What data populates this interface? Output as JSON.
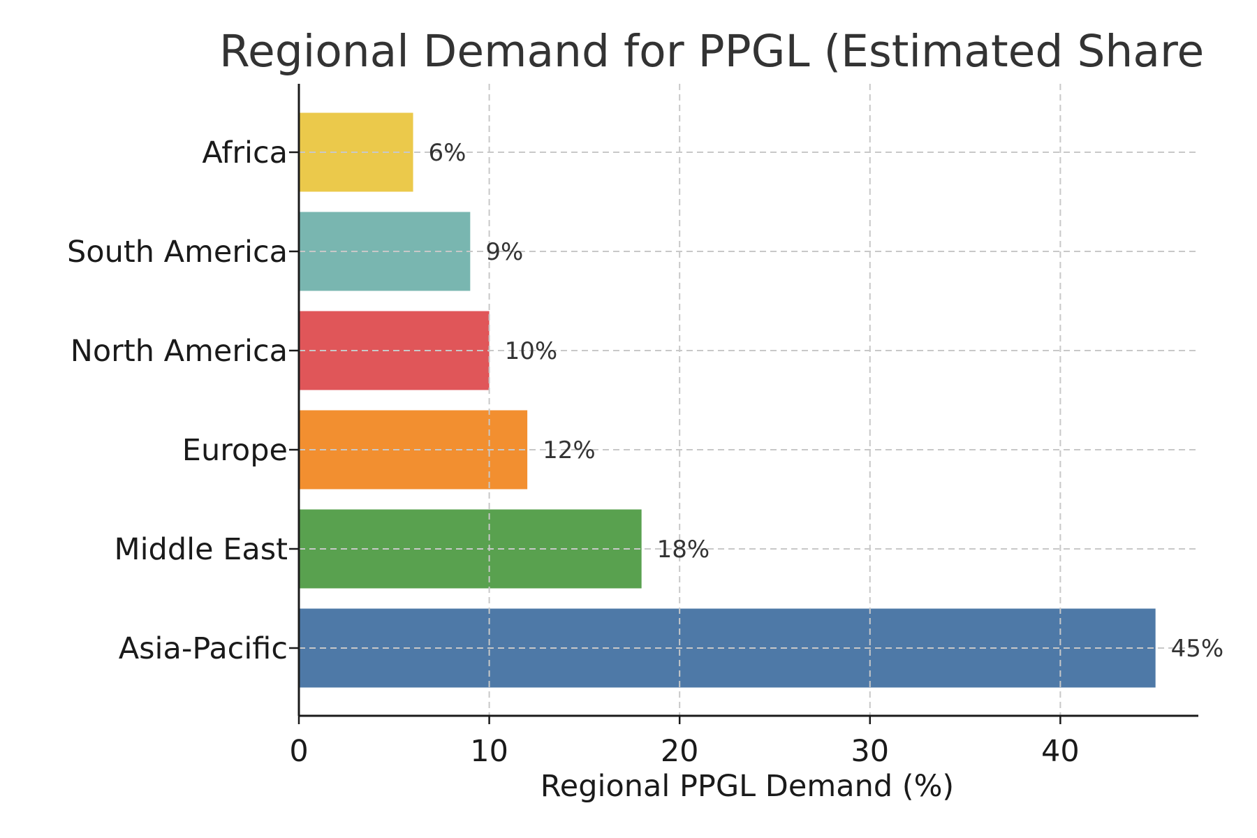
{
  "chart_data": {
    "type": "bar",
    "orientation": "horizontal",
    "title": "Regional Demand for PPGL (Estimated Share",
    "xlabel": "Regional PPGL Demand (%)",
    "ylabel": "",
    "xlim": [
      0,
      47.25
    ],
    "xticks": [
      0,
      10,
      20,
      30,
      40
    ],
    "grid": true,
    "categories": [
      "Africa",
      "South America",
      "North America",
      "Europe",
      "Middle East",
      "Asia-Pacific"
    ],
    "values": [
      6,
      9,
      10,
      12,
      18,
      45
    ],
    "value_labels": [
      "6%",
      "9%",
      "10%",
      "12%",
      "18%",
      "45%"
    ],
    "colors": [
      "#ebc94b",
      "#79b6b0",
      "#e05659",
      "#f28f30",
      "#59a14f",
      "#4e79a7"
    ]
  }
}
